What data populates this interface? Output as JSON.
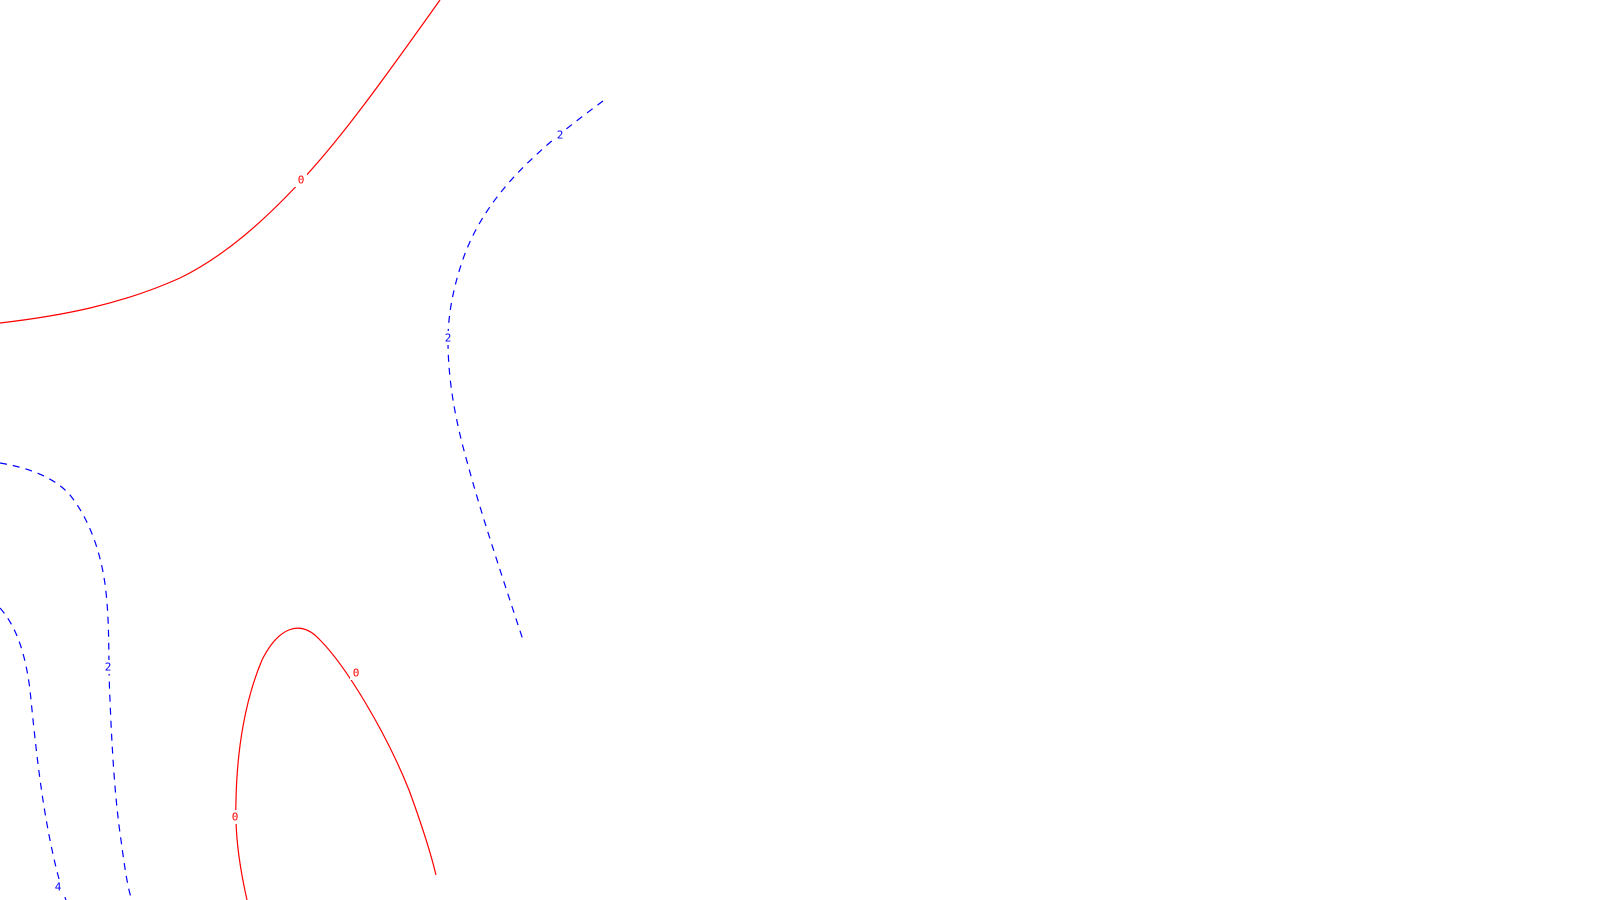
{
  "contour_plot": {
    "background_color": "#ffffff",
    "levels": [
      {
        "value": 0,
        "color": "#ff0000",
        "line_style": "solid",
        "lines": [
          {
            "id": "top-left-curve",
            "label": "0"
          },
          {
            "id": "bottom-arch-curve",
            "label": "0",
            "label_2": "0"
          }
        ]
      },
      {
        "value": 2,
        "color": "#0000ff",
        "line_style": "dashed",
        "lines": [
          {
            "id": "center-curve",
            "label": "2",
            "label_2": "2"
          },
          {
            "id": "left-curve",
            "label": "2"
          }
        ]
      },
      {
        "value": 4,
        "color": "#0000ff",
        "line_style": "dashed",
        "lines": [
          {
            "id": "far-left-curve",
            "label": "4"
          }
        ]
      }
    ]
  }
}
